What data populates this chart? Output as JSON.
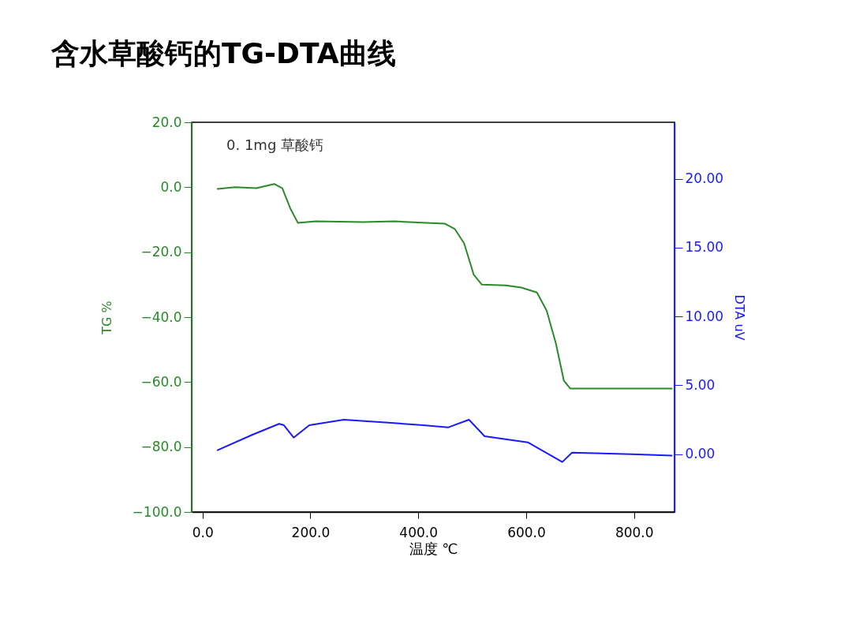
{
  "chart_data": {
    "type": "line",
    "title": "含水草酸钙的TG-DTA曲线",
    "xlabel": "温度 ℃",
    "ylabel": "TG %",
    "y2label": "DTA uV",
    "annotations": [
      "0. 1mg 草酸钙"
    ],
    "xlim": [
      -20,
      875
    ],
    "xticks": [
      {
        "value": 0,
        "label": "0.0"
      },
      {
        "value": 200,
        "label": "200.0"
      },
      {
        "value": 400,
        "label": "400.0"
      },
      {
        "value": 600,
        "label": "600.0"
      },
      {
        "value": 800,
        "label": "800.0"
      }
    ],
    "ylim": [
      -100,
      20
    ],
    "yticks": [
      {
        "value": -100,
        "label": "−100.0"
      },
      {
        "value": -80,
        "label": "−80.0"
      },
      {
        "value": -60,
        "label": "−60.0"
      },
      {
        "value": -40,
        "label": "−40.0"
      },
      {
        "value": -20,
        "label": "−20.0"
      },
      {
        "value": 0,
        "label": "0.0"
      },
      {
        "value": 20,
        "label": "20.0"
      }
    ],
    "y2lim": [
      -4.2,
      24.1
    ],
    "y2ticks": [
      {
        "value": 0,
        "label": "0.00"
      },
      {
        "value": 5,
        "label": "5.00"
      },
      {
        "value": 10,
        "label": "10.00"
      },
      {
        "value": 15,
        "label": "15.00"
      },
      {
        "value": 20,
        "label": "20.00"
      }
    ],
    "grid": false,
    "legend": false,
    "series": [
      {
        "type": "line",
        "color": "#2a8a2a",
        "x": [
          28,
          60,
          100,
          133,
          148,
          163,
          177,
          210,
          298,
          356,
          415,
          449,
          468,
          485,
          503,
          518,
          562,
          591,
          620,
          638,
          655,
          670,
          682,
          750,
          820,
          870
        ],
        "values": [
          -0.5,
          0,
          -0.3,
          1,
          -0.3,
          -6.6,
          -11,
          -10.5,
          -10.7,
          -10.5,
          -11,
          -11.2,
          -12.9,
          -17.3,
          -27,
          -30,
          -30.2,
          -30.9,
          -32.4,
          -38,
          -48,
          -59.6,
          -62,
          -62,
          -62,
          -62
        ]
      },
      {
        "type": "line",
        "axis": "y2",
        "color": "#1a1aff",
        "x": [
          28,
          92,
          142,
          151,
          169,
          198,
          262,
          339,
          409,
          456,
          494,
          523,
          603,
          667,
          685,
          796,
          870
        ],
        "values": [
          0.29,
          1.4,
          2.2,
          2.1,
          1.2,
          2.1,
          2.5,
          2.3,
          2.1,
          1.95,
          2.5,
          1.3,
          0.86,
          -0.57,
          0.11,
          0,
          -0.1
        ]
      }
    ]
  }
}
